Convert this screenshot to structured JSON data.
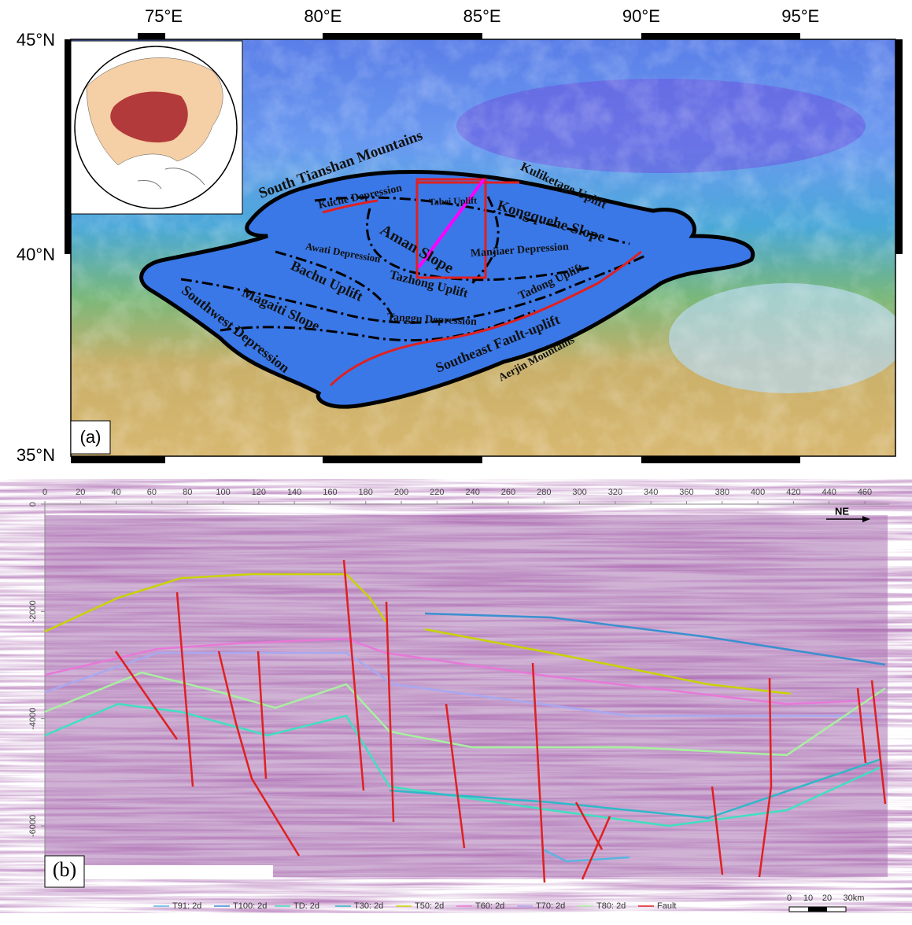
{
  "panel_a": {
    "label": "(a)",
    "lon_labels": [
      "75°E",
      "80°E",
      "85°E",
      "90°E",
      "95°E"
    ],
    "lat_labels": [
      "45°N",
      "40°N",
      "35°N"
    ],
    "features": [
      "South Tianshan Mountains",
      "Kuche Depression",
      "Tabei Uplift",
      "Kuliketage Uplift",
      "Kongquehe Slope",
      "Aman Slope",
      "Awati Depression",
      "Manjiaer Depression",
      "Tazhong Uplift",
      "Bachu Uplift",
      "Tadong Uplift",
      "Magaiti Slope",
      "Tanggu Depression",
      "Southwest Depression",
      "Southeast Fault-uplift",
      "Aerjin Mountains"
    ]
  },
  "panel_b": {
    "label": "(b)",
    "x_ticks": [
      0,
      20,
      40,
      60,
      80,
      100,
      120,
      140,
      160,
      180,
      200,
      220,
      240,
      260,
      280,
      300,
      320,
      340,
      360,
      380,
      400,
      420,
      440,
      460
    ],
    "y_ticks": [
      0,
      -2000,
      -4000,
      -6000
    ],
    "direction": "NE",
    "legend": [
      {
        "name": "T91: 2d",
        "color": "#5ab4e0"
      },
      {
        "name": "T100: 2d",
        "color": "#3a8fd0"
      },
      {
        "name": "TD: 2d",
        "color": "#3fe0c0"
      },
      {
        "name": "T30: 2d",
        "color": "#2fb8c8"
      },
      {
        "name": "T50: 2d",
        "color": "#c8d400"
      },
      {
        "name": "T60: 2d",
        "color": "#e878d8"
      },
      {
        "name": "T70: 2d",
        "color": "#a8a8f0"
      },
      {
        "name": "T80: 2d",
        "color": "#a8f0a0"
      },
      {
        "name": "Fault",
        "color": "#e02020"
      }
    ],
    "scale_bar": [
      "0",
      "10",
      "20",
      "30km"
    ]
  }
}
